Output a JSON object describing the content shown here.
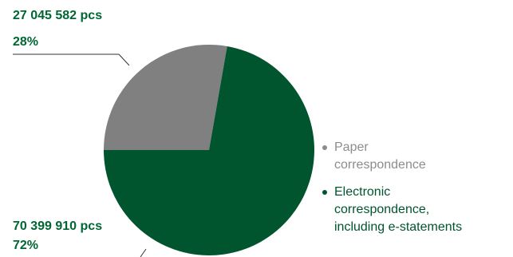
{
  "chart_data": {
    "type": "pie",
    "title": "",
    "slices": [
      {
        "label": "Paper correspondence",
        "value": 27045582,
        "percent": 28,
        "value_text": "27 045 582 pcs",
        "percent_text": "28%",
        "color": "#808080"
      },
      {
        "label": "Electronic correspondence, including e-statements",
        "value": 70399910,
        "percent": 72,
        "value_text": "70 399 910 pcs",
        "percent_text": "72%",
        "color": "#00552e"
      }
    ],
    "legend": {
      "placement": "right",
      "items": [
        {
          "lines": [
            "Paper",
            "correspondence"
          ],
          "color": "#8c8c8c",
          "text_color": "#8c8c8c"
        },
        {
          "lines": [
            "Electronic",
            "correspondence,",
            "including e-statements"
          ],
          "color": "#00552e",
          "text_color": "#00552e"
        }
      ]
    },
    "callout_color": "#006633"
  }
}
